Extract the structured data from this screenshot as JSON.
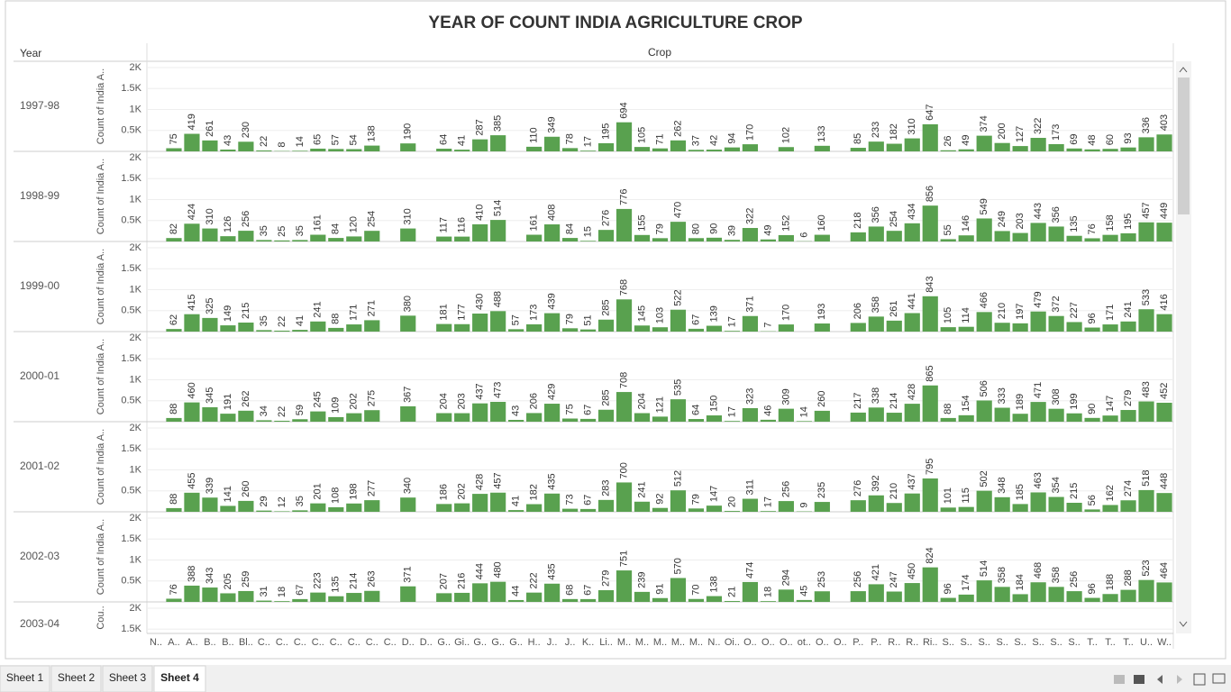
{
  "chart_data": {
    "type": "bar",
    "title": "YEAR OF COUNT INDIA AGRICULTURE CROP",
    "row_header": "Year",
    "column_header": "Crop",
    "y_label": "Count of India A..",
    "y_label_cropped": "Cou..",
    "color": "#59a14f",
    "grid": true,
    "ylim": [
      0,
      2150
    ],
    "yticks": [
      {
        "value": 500,
        "label": "0.5K"
      },
      {
        "value": 1000,
        "label": "1K"
      },
      {
        "value": 1500,
        "label": "1.5K"
      },
      {
        "value": 2000,
        "label": "2K"
      }
    ],
    "categories": [
      "N..",
      "A..",
      "A..",
      "B..",
      "B..",
      "Bl..",
      "C..",
      "C..",
      "C..",
      "C..",
      "C..",
      "C..",
      "C..",
      "C..",
      "D..",
      "D..",
      "G..",
      "Gi..",
      "G..",
      "G..",
      "G..",
      "H..",
      "J..",
      "J..",
      "K..",
      "Li..",
      "M..",
      "M..",
      "M..",
      "M..",
      "M..",
      "N..",
      "Oi..",
      "O..",
      "O..",
      "O..",
      "ot..",
      "O..",
      "O..",
      "P..",
      "P..",
      "R..",
      "R..",
      "Ri..",
      "S..",
      "S..",
      "S..",
      "S..",
      "S..",
      "S..",
      "S..",
      "S..",
      "T..",
      "T..",
      "T..",
      "U..",
      "W.."
    ],
    "series": [
      {
        "name": "1997-98",
        "values": [
          null,
          75,
          419,
          261,
          43,
          230,
          22,
          8,
          14,
          65,
          57,
          54,
          138,
          null,
          190,
          null,
          64,
          41,
          287,
          385,
          null,
          110,
          349,
          78,
          17,
          195,
          694,
          105,
          71,
          262,
          37,
          42,
          94,
          170,
          null,
          102,
          null,
          133,
          null,
          85,
          233,
          182,
          310,
          647,
          26,
          49,
          374,
          200,
          127,
          322,
          173,
          69,
          48,
          60,
          93,
          336,
          403
        ]
      },
      {
        "name": "1998-99",
        "values": [
          null,
          82,
          424,
          310,
          126,
          256,
          35,
          25,
          35,
          161,
          84,
          120,
          254,
          null,
          310,
          null,
          117,
          116,
          410,
          514,
          null,
          161,
          408,
          84,
          15,
          276,
          776,
          155,
          79,
          470,
          80,
          90,
          39,
          322,
          49,
          152,
          6,
          160,
          null,
          218,
          356,
          254,
          434,
          856,
          55,
          146,
          549,
          249,
          203,
          443,
          356,
          135,
          76,
          158,
          195,
          457,
          449
        ]
      },
      {
        "name": "1999-00",
        "values": [
          null,
          62,
          415,
          325,
          149,
          215,
          35,
          22,
          41,
          241,
          88,
          171,
          271,
          null,
          380,
          null,
          181,
          177,
          430,
          488,
          57,
          173,
          439,
          79,
          51,
          285,
          768,
          145,
          103,
          522,
          67,
          139,
          17,
          371,
          7,
          170,
          null,
          193,
          null,
          206,
          358,
          261,
          441,
          843,
          105,
          114,
          466,
          210,
          197,
          479,
          372,
          227,
          96,
          171,
          241,
          533,
          416
        ]
      },
      {
        "name": "2000-01",
        "values": [
          null,
          88,
          460,
          345,
          191,
          262,
          34,
          22,
          59,
          245,
          109,
          202,
          275,
          null,
          367,
          null,
          204,
          203,
          437,
          473,
          43,
          206,
          429,
          75,
          67,
          285,
          708,
          204,
          121,
          535,
          64,
          150,
          17,
          323,
          46,
          309,
          14,
          260,
          null,
          217,
          338,
          214,
          428,
          865,
          88,
          154,
          506,
          333,
          189,
          471,
          308,
          199,
          90,
          147,
          279,
          483,
          452
        ]
      },
      {
        "name": "2001-02",
        "values": [
          null,
          88,
          455,
          339,
          141,
          260,
          29,
          12,
          35,
          201,
          108,
          198,
          277,
          null,
          340,
          null,
          186,
          202,
          428,
          457,
          41,
          182,
          435,
          73,
          67,
          283,
          700,
          241,
          92,
          512,
          79,
          147,
          20,
          311,
          17,
          256,
          9,
          235,
          null,
          276,
          392,
          210,
          437,
          795,
          101,
          115,
          502,
          348,
          185,
          463,
          354,
          215,
          56,
          162,
          274,
          518,
          448
        ]
      },
      {
        "name": "2002-03",
        "values": [
          null,
          76,
          388,
          343,
          205,
          259,
          31,
          18,
          67,
          223,
          135,
          214,
          263,
          null,
          371,
          null,
          207,
          216,
          444,
          480,
          44,
          222,
          435,
          68,
          67,
          279,
          751,
          239,
          91,
          570,
          70,
          138,
          21,
          474,
          18,
          294,
          45,
          253,
          null,
          256,
          421,
          247,
          450,
          824,
          96,
          174,
          514,
          358,
          184,
          468,
          358,
          256,
          96,
          188,
          288,
          523,
          464
        ]
      },
      {
        "name": "2003-04",
        "values": [
          null,
          null,
          null,
          null,
          null,
          null,
          null,
          null,
          null,
          null,
          null,
          null,
          null,
          null,
          null,
          null,
          null,
          null,
          null,
          null,
          null,
          null,
          null,
          null,
          null,
          null,
          null,
          null,
          null,
          null,
          null,
          null,
          null,
          null,
          null,
          null,
          null,
          null,
          null,
          null,
          null,
          null,
          null,
          null,
          null,
          null,
          null,
          null,
          null,
          null,
          null,
          null,
          null,
          null,
          null,
          null,
          null
        ]
      }
    ]
  },
  "tabs": [
    "Sheet 1",
    "Sheet 2",
    "Sheet 3",
    "Sheet 4"
  ],
  "active_tab": 3
}
